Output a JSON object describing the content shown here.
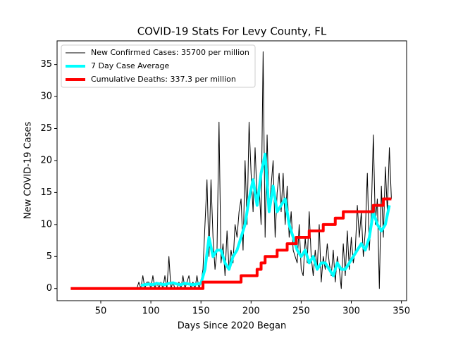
{
  "chart_data": {
    "type": "line",
    "title": "COVID-19 Stats For Levy County, FL",
    "xlabel": "Days Since 2020 Began",
    "ylabel": "New COVID-19 Cases",
    "xlim": [
      6.4,
      355.2
    ],
    "ylim": [
      -1.9,
      38.7
    ],
    "xticks": [
      50,
      100,
      150,
      200,
      250,
      300,
      350
    ],
    "yticks": [
      0,
      5,
      10,
      15,
      20,
      25,
      30,
      35
    ],
    "legend": "upper-left",
    "series": [
      {
        "name": "New Confirmed Cases: 35700 per million",
        "color": "#000000",
        "width": 1,
        "x": [
          86,
          88,
          90,
          92,
          94,
          96,
          98,
          100,
          102,
          104,
          106,
          108,
          110,
          112,
          114,
          116,
          118,
          120,
          122,
          124,
          126,
          128,
          130,
          132,
          134,
          136,
          138,
          140,
          142,
          144,
          146,
          148,
          150,
          152,
          154,
          156,
          158,
          160,
          162,
          164,
          166,
          168,
          170,
          172,
          174,
          176,
          178,
          180,
          182,
          184,
          186,
          188,
          190,
          192,
          194,
          196,
          198,
          200,
          202,
          204,
          206,
          208,
          210,
          212,
          214,
          216,
          218,
          220,
          222,
          224,
          226,
          228,
          230,
          232,
          234,
          236,
          238,
          240,
          242,
          244,
          246,
          248,
          250,
          252,
          254,
          256,
          258,
          260,
          262,
          264,
          266,
          268,
          270,
          272,
          274,
          276,
          278,
          280,
          282,
          284,
          286,
          288,
          290,
          292,
          294,
          296,
          298,
          300,
          302,
          304,
          306,
          308,
          310,
          312,
          314,
          316,
          318,
          320,
          322,
          324,
          326,
          328,
          330,
          332,
          334,
          336,
          338,
          340
        ],
        "values": [
          0,
          1,
          0,
          2,
          0,
          1,
          1,
          0,
          2,
          0,
          1,
          0,
          1,
          0,
          2,
          0,
          5,
          0,
          1,
          0,
          0,
          1,
          0,
          2,
          0,
          1,
          2,
          0,
          1,
          0,
          2,
          0,
          1,
          3,
          10,
          17,
          5,
          17,
          8,
          3,
          6,
          26,
          4,
          7,
          2,
          9,
          3,
          6,
          4,
          10,
          8,
          12,
          14,
          6,
          20,
          10,
          26,
          18,
          12,
          22,
          14,
          16,
          10,
          37,
          8,
          24,
          12,
          16,
          20,
          8,
          15,
          18,
          12,
          18,
          10,
          16,
          8,
          12,
          6,
          5,
          4,
          10,
          3,
          2,
          8,
          4,
          12,
          5,
          2,
          6,
          3,
          10,
          1,
          5,
          3,
          7,
          4,
          2,
          6,
          1,
          5,
          3,
          0,
          7,
          2,
          9,
          3,
          8,
          4,
          6,
          13,
          8,
          12,
          5,
          9,
          18,
          6,
          12,
          24,
          10,
          14,
          0,
          16,
          8,
          19,
          12,
          22,
          14
        ]
      },
      {
        "name": "7 Day Case Average",
        "color": "#00ffff",
        "width": 4,
        "x": [
          90,
          94,
          98,
          102,
          106,
          110,
          114,
          118,
          122,
          126,
          130,
          134,
          138,
          142,
          146,
          150,
          154,
          158,
          162,
          166,
          170,
          174,
          178,
          182,
          186,
          190,
          194,
          198,
          202,
          206,
          210,
          214,
          218,
          222,
          226,
          230,
          234,
          238,
          242,
          246,
          250,
          254,
          258,
          262,
          266,
          270,
          274,
          278,
          282,
          286,
          290,
          294,
          298,
          302,
          306,
          310,
          314,
          318,
          322,
          326,
          330,
          334,
          338
        ],
        "values": [
          0.5,
          0.6,
          0.7,
          0.6,
          0.8,
          0.7,
          0.6,
          0.8,
          0.9,
          0.7,
          0.6,
          0.8,
          0.7,
          0.6,
          0.7,
          0.8,
          3,
          8,
          5,
          6,
          6,
          4,
          3,
          5,
          6,
          8,
          10,
          14,
          17,
          13,
          18,
          21,
          12,
          16,
          12,
          13,
          14,
          10,
          8,
          6,
          5,
          6,
          4,
          5,
          3,
          4,
          4,
          3,
          2,
          4,
          3,
          3,
          4,
          5,
          6,
          7,
          6,
          8,
          12,
          10,
          9,
          10,
          13
        ]
      },
      {
        "name": "Cumulative Deaths: 337.3 per million",
        "color": "#ff0000",
        "width": 4,
        "x": [
          20,
          152,
          152,
          190,
          190,
          206,
          206,
          210,
          210,
          214,
          214,
          226,
          226,
          236,
          236,
          245,
          245,
          258,
          258,
          272,
          272,
          284,
          284,
          292,
          292,
          322,
          322,
          332,
          332,
          340
        ],
        "values": [
          0,
          0,
          1,
          1,
          2,
          2,
          3,
          3,
          4,
          4,
          5,
          5,
          6,
          6,
          7,
          7,
          8,
          8,
          9,
          9,
          10,
          10,
          11,
          11,
          12,
          12,
          13,
          13,
          14,
          14
        ]
      }
    ]
  }
}
